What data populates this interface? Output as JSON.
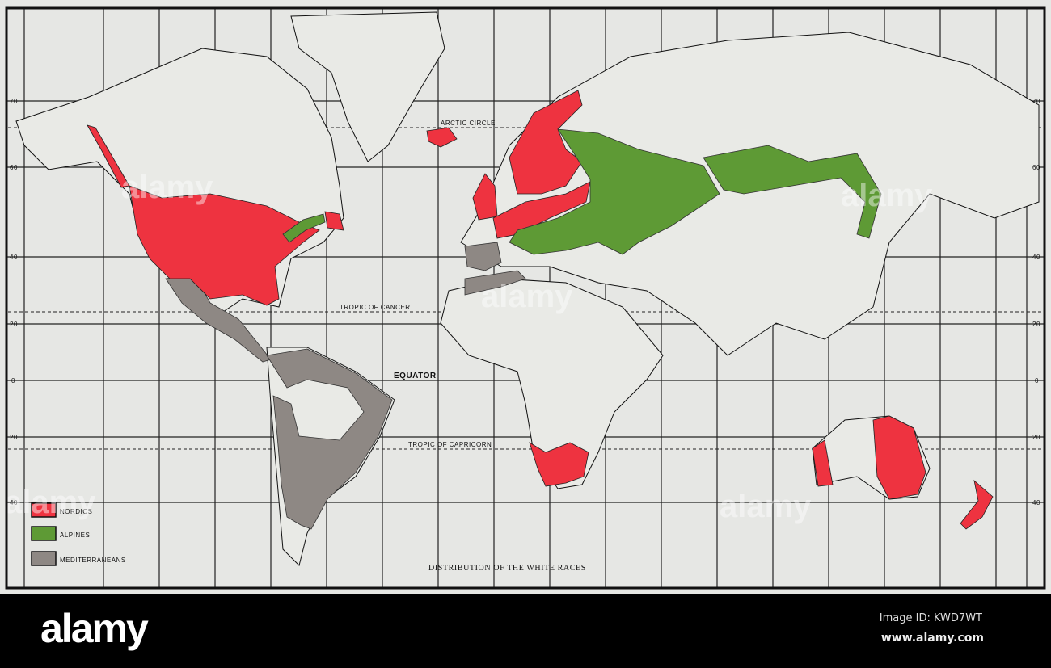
{
  "map": {
    "title": "DISTRIBUTION OF THE WHITE RACES",
    "reference_lines": {
      "arctic_circle": "ARCTIC CIRCLE",
      "tropic_of_cancer": "TROPIC OF CANCER",
      "equator": "EQUATOR",
      "tropic_of_capricorn": "TROPIC OF CAPRICORN"
    },
    "latitude_labels": [
      "70",
      "60",
      "40",
      "20",
      "0",
      "20",
      "40"
    ],
    "legend": [
      {
        "label": "NORDICS",
        "color": "#ee3340"
      },
      {
        "label": "ALPINES",
        "color": "#5e9a35"
      },
      {
        "label": "MEDITERRANEANS",
        "color": "#8e8884"
      }
    ],
    "watermark": "alamy"
  },
  "footer": {
    "logo": "alamy",
    "image_id": "Image ID: KWD7WT",
    "site": "www.alamy.com"
  }
}
